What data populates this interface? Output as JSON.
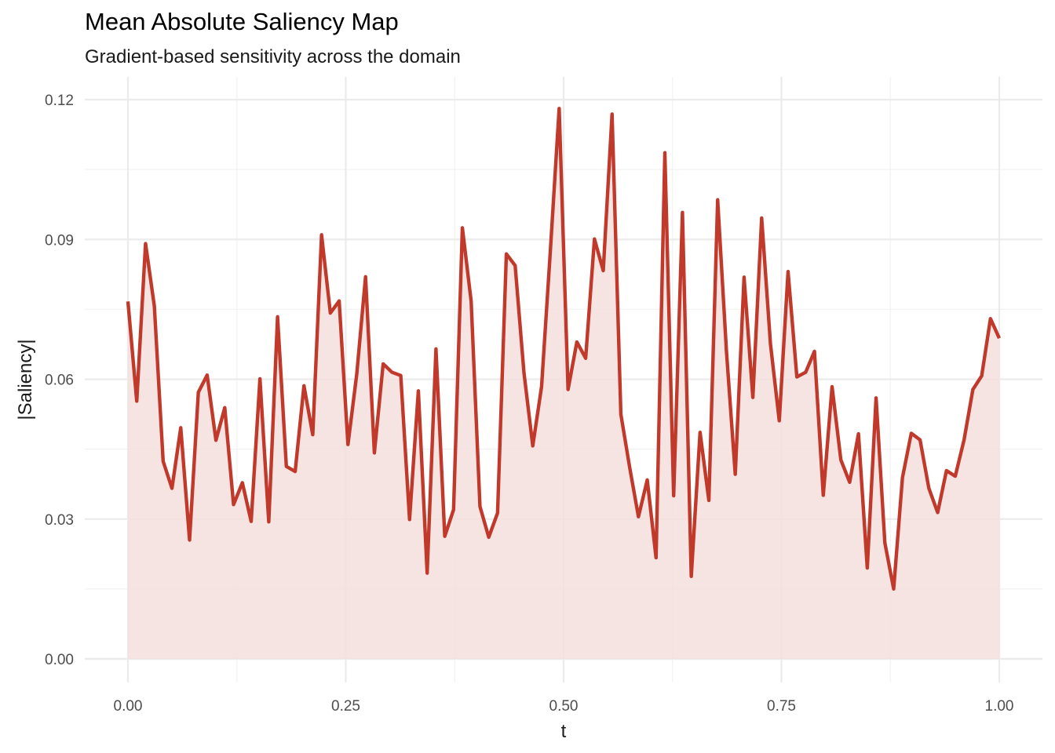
{
  "chart_data": {
    "type": "area",
    "title": "Mean Absolute Saliency Map",
    "subtitle": "Gradient-based sensitivity across the domain",
    "xlabel": "t",
    "ylabel": "|Saliency|",
    "xlim": [
      0,
      1
    ],
    "ylim": [
      0,
      0.12
    ],
    "x_ticks": [
      0,
      0.25,
      0.5,
      0.75,
      1
    ],
    "x_tick_labels": [
      "0.00",
      "0.25",
      "0.50",
      "0.75",
      "1.00"
    ],
    "y_ticks": [
      0,
      0.03,
      0.06,
      0.09,
      0.12
    ],
    "y_tick_labels": [
      "0.00",
      "0.03",
      "0.06",
      "0.09",
      "0.12"
    ],
    "grid": true,
    "line_color": "#c0392b",
    "fill_color": "#f5dfdd",
    "x": [
      0.0,
      0.0101,
      0.0202,
      0.0303,
      0.0404,
      0.0505,
      0.0606,
      0.0707,
      0.0808,
      0.0909,
      0.101,
      0.1111,
      0.1212,
      0.1313,
      0.1414,
      0.1515,
      0.1616,
      0.1717,
      0.1818,
      0.1919,
      0.202,
      0.2121,
      0.2222,
      0.2323,
      0.2424,
      0.2525,
      0.2626,
      0.2727,
      0.2828,
      0.2929,
      0.303,
      0.3131,
      0.3232,
      0.3333,
      0.3434,
      0.3535,
      0.3636,
      0.3737,
      0.3838,
      0.3939,
      0.404,
      0.4141,
      0.4242,
      0.4343,
      0.4444,
      0.4545,
      0.4646,
      0.4747,
      0.4848,
      0.4949,
      0.5051,
      0.5152,
      0.5253,
      0.5354,
      0.5455,
      0.5556,
      0.5657,
      0.5758,
      0.5859,
      0.596,
      0.6061,
      0.6162,
      0.6263,
      0.6364,
      0.6465,
      0.6566,
      0.6667,
      0.6768,
      0.6869,
      0.697,
      0.7071,
      0.7172,
      0.7273,
      0.7374,
      0.7475,
      0.7576,
      0.7677,
      0.7778,
      0.7879,
      0.798,
      0.8081,
      0.8182,
      0.8283,
      0.8384,
      0.8485,
      0.8586,
      0.8687,
      0.8788,
      0.8889,
      0.899,
      0.9091,
      0.9192,
      0.9293,
      0.9394,
      0.9495,
      0.9596,
      0.9697,
      0.9798,
      0.9899,
      1.0
    ],
    "values": [
      0.0767,
      0.0553,
      0.0891,
      0.0757,
      0.0424,
      0.0366,
      0.0496,
      0.0255,
      0.0572,
      0.0609,
      0.0469,
      0.0539,
      0.0331,
      0.0378,
      0.0295,
      0.0601,
      0.0294,
      0.0734,
      0.0413,
      0.0402,
      0.0586,
      0.0481,
      0.091,
      0.0742,
      0.0768,
      0.046,
      0.0611,
      0.082,
      0.0442,
      0.0633,
      0.0615,
      0.0608,
      0.0299,
      0.0575,
      0.0184,
      0.0665,
      0.0263,
      0.032,
      0.0925,
      0.0767,
      0.0327,
      0.0261,
      0.0313,
      0.0869,
      0.0844,
      0.0614,
      0.0457,
      0.0584,
      0.0876,
      0.1181,
      0.0578,
      0.068,
      0.0645,
      0.0901,
      0.0833,
      0.1169,
      0.0525,
      0.0411,
      0.0305,
      0.0384,
      0.0217,
      0.1086,
      0.035,
      0.0958,
      0.0177,
      0.0486,
      0.034,
      0.0985,
      0.066,
      0.0396,
      0.0819,
      0.0561,
      0.0946,
      0.0676,
      0.0511,
      0.0831,
      0.0605,
      0.0615,
      0.066,
      0.0351,
      0.0584,
      0.0427,
      0.0379,
      0.0483,
      0.0195,
      0.056,
      0.0249,
      0.015,
      0.0389,
      0.0484,
      0.047,
      0.0366,
      0.0314,
      0.0404,
      0.0392,
      0.047,
      0.0578,
      0.0607,
      0.073,
      0.0688
    ]
  }
}
